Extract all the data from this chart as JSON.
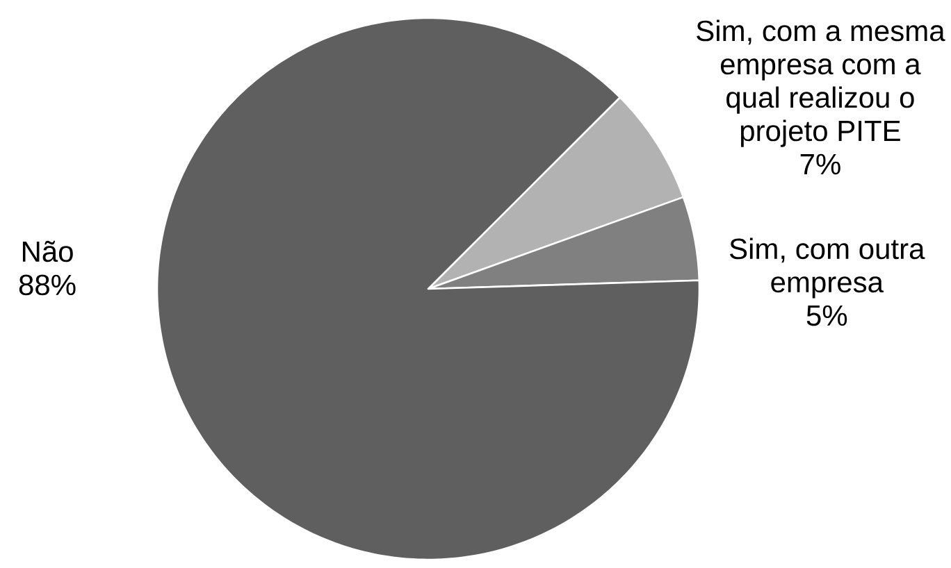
{
  "chart_data": {
    "type": "pie",
    "categories": [
      "Sim, com a mesma empresa com a qual realizou o projeto PITE",
      "Sim, com outra empresa",
      "Não"
    ],
    "values": [
      7,
      5,
      88
    ],
    "colors": [
      "#b2b2b2",
      "#808080",
      "#5f5f5f"
    ],
    "value_labels": [
      "7%",
      "5%",
      "88%"
    ]
  }
}
